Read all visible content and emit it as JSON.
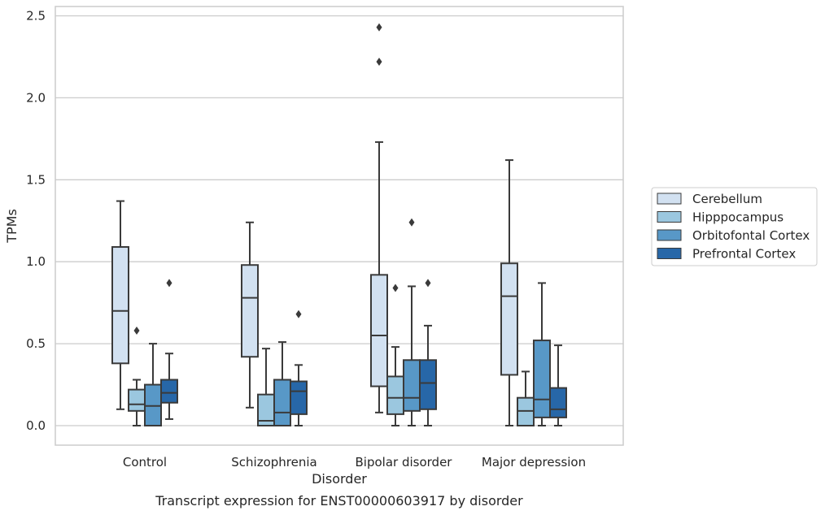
{
  "chart_data": {
    "type": "box",
    "title": "",
    "caption": "Transcript expression for ENST00000603917 by disorder",
    "xlabel": "Disorder",
    "ylabel": "TPMs",
    "ylim": [
      -0.12,
      2.56
    ],
    "yticks": [
      0.0,
      0.5,
      1.0,
      1.5,
      2.0,
      2.5
    ],
    "ytick_labels": [
      "0.0",
      "0.5",
      "1.0",
      "1.5",
      "2.0",
      "2.5"
    ],
    "grid": "horizontal",
    "legend_position": "right",
    "categories": [
      "Control",
      "Schizophrenia",
      "Bipolar disorder",
      "Major depression"
    ],
    "series": [
      {
        "name": "Cerebellum",
        "color": "#d2e1f1",
        "boxes": [
          {
            "whislo": 0.1,
            "q1": 0.38,
            "med": 0.7,
            "q3": 1.09,
            "whishi": 1.37,
            "fliers": []
          },
          {
            "whislo": 0.11,
            "q1": 0.42,
            "med": 0.78,
            "q3": 0.98,
            "whishi": 1.24,
            "fliers": []
          },
          {
            "whislo": 0.08,
            "q1": 0.24,
            "med": 0.55,
            "q3": 0.92,
            "whishi": 1.73,
            "fliers": [
              2.22,
              2.43
            ]
          },
          {
            "whislo": 0.0,
            "q1": 0.31,
            "med": 0.79,
            "q3": 0.99,
            "whishi": 1.62,
            "fliers": []
          }
        ]
      },
      {
        "name": "Hipppocampus",
        "color": "#9bc7df",
        "boxes": [
          {
            "whislo": 0.0,
            "q1": 0.09,
            "med": 0.13,
            "q3": 0.22,
            "whishi": 0.28,
            "fliers": [
              0.58
            ]
          },
          {
            "whislo": 0.0,
            "q1": 0.0,
            "med": 0.03,
            "q3": 0.19,
            "whishi": 0.47,
            "fliers": []
          },
          {
            "whislo": 0.0,
            "q1": 0.07,
            "med": 0.17,
            "q3": 0.3,
            "whishi": 0.48,
            "fliers": [
              0.84
            ]
          },
          {
            "whislo": 0.0,
            "q1": 0.0,
            "med": 0.09,
            "q3": 0.17,
            "whishi": 0.33,
            "fliers": []
          }
        ]
      },
      {
        "name": "Orbitofontal Cortex",
        "color": "#5898c7",
        "boxes": [
          {
            "whislo": 0.0,
            "q1": 0.0,
            "med": 0.12,
            "q3": 0.25,
            "whishi": 0.5,
            "fliers": []
          },
          {
            "whislo": 0.0,
            "q1": 0.0,
            "med": 0.08,
            "q3": 0.28,
            "whishi": 0.51,
            "fliers": []
          },
          {
            "whislo": 0.0,
            "q1": 0.09,
            "med": 0.17,
            "q3": 0.4,
            "whishi": 0.85,
            "fliers": [
              1.24
            ]
          },
          {
            "whislo": 0.0,
            "q1": 0.05,
            "med": 0.16,
            "q3": 0.52,
            "whishi": 0.87,
            "fliers": []
          }
        ]
      },
      {
        "name": "Prefrontal Cortex",
        "color": "#2767a8",
        "boxes": [
          {
            "whislo": 0.04,
            "q1": 0.14,
            "med": 0.2,
            "q3": 0.28,
            "whishi": 0.44,
            "fliers": [
              0.87
            ]
          },
          {
            "whislo": 0.0,
            "q1": 0.07,
            "med": 0.21,
            "q3": 0.27,
            "whishi": 0.37,
            "fliers": [
              0.68
            ]
          },
          {
            "whislo": 0.0,
            "q1": 0.1,
            "med": 0.26,
            "q3": 0.4,
            "whishi": 0.61,
            "fliers": [
              0.87
            ]
          },
          {
            "whislo": 0.0,
            "q1": 0.05,
            "med": 0.1,
            "q3": 0.23,
            "whishi": 0.49,
            "fliers": []
          }
        ]
      }
    ]
  }
}
